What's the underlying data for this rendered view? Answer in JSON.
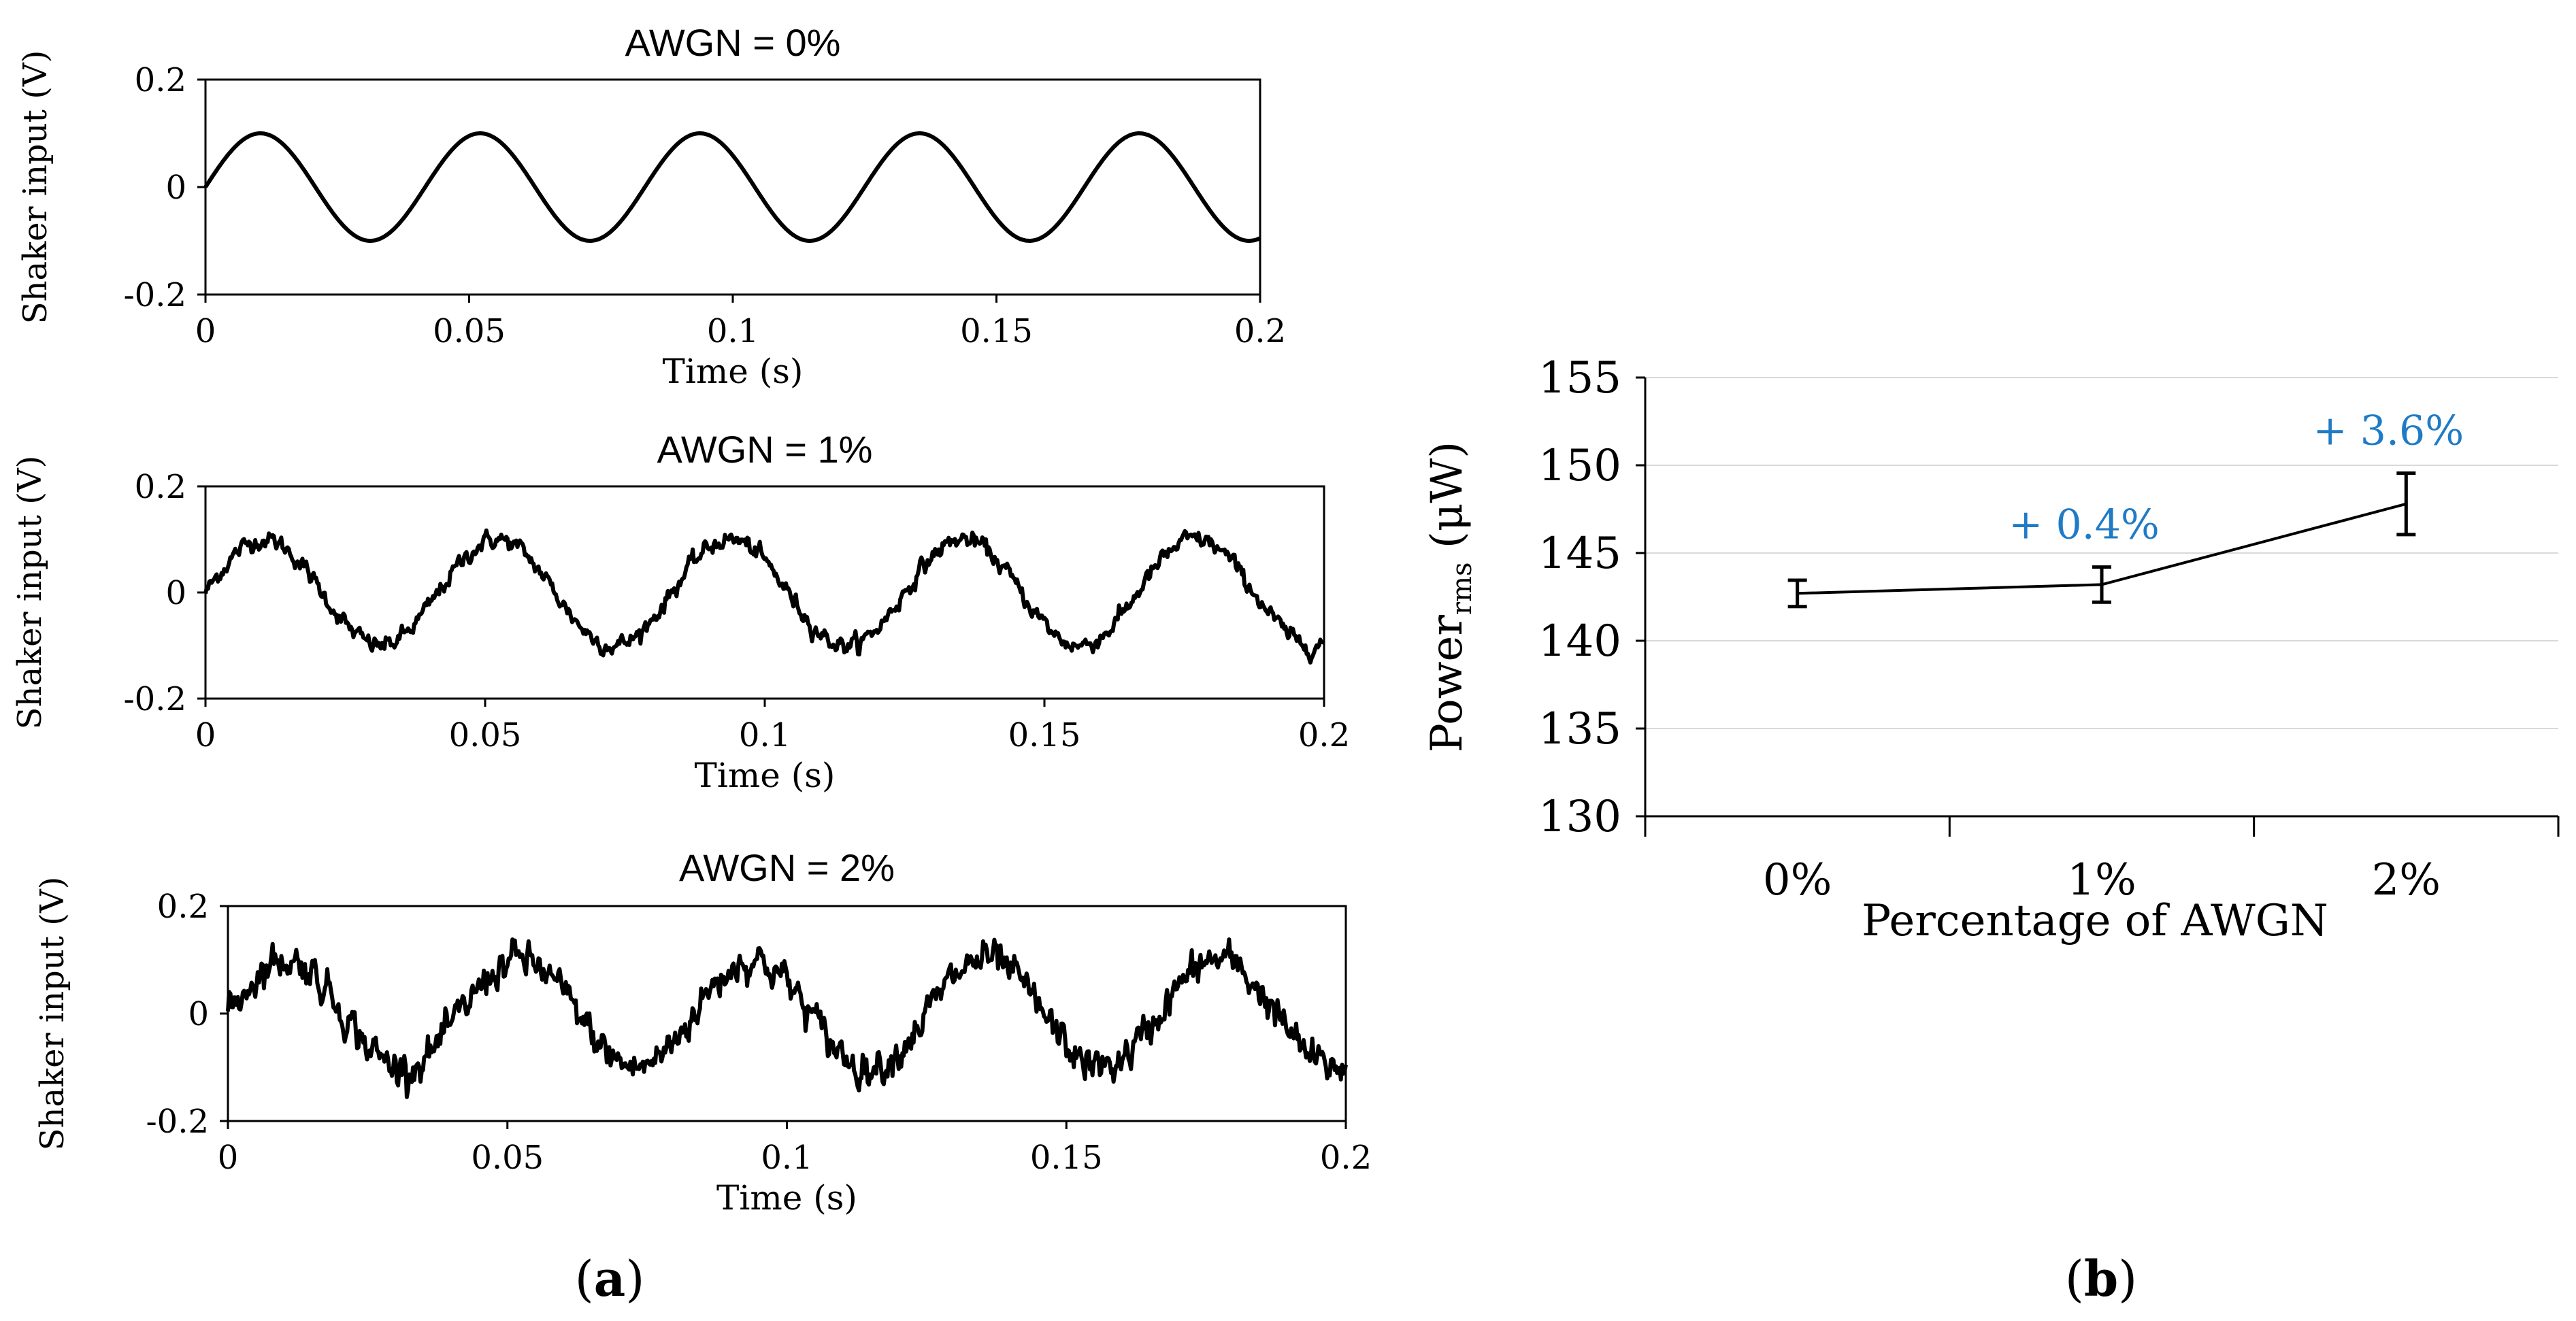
{
  "figure_labels": {
    "a": "a",
    "b": "b"
  },
  "chart_data": [
    {
      "id": "awgn0",
      "type": "line",
      "title": "AWGN = 0%",
      "xlabel": "Time (s)",
      "ylabel": "Shaker input (V)",
      "xlim": [
        0,
        0.2
      ],
      "ylim": [
        -0.2,
        0.2
      ],
      "xticks": [
        0,
        0.05,
        0.1,
        0.15,
        0.2
      ],
      "xtick_labels": [
        "0",
        "0.05",
        "0.1",
        "0.15",
        "0.2"
      ],
      "yticks": [
        -0.2,
        0,
        0.2
      ],
      "ytick_labels": [
        "-0.2",
        "0",
        "0.2"
      ],
      "signal": {
        "amplitude": 0.1,
        "frequency_hz": 24,
        "noise_percent": 0
      }
    },
    {
      "id": "awgn1",
      "type": "line",
      "title": "AWGN = 1%",
      "xlabel": "Time (s)",
      "ylabel": "Shaker input (V)",
      "xlim": [
        0,
        0.2
      ],
      "ylim": [
        -0.2,
        0.2
      ],
      "xticks": [
        0,
        0.05,
        0.1,
        0.15,
        0.2
      ],
      "xtick_labels": [
        "0",
        "0.05",
        "0.1",
        "0.15",
        "0.2"
      ],
      "yticks": [
        -0.2,
        0,
        0.2
      ],
      "ytick_labels": [
        "-0.2",
        "0",
        "0.2"
      ],
      "signal": {
        "amplitude": 0.1,
        "frequency_hz": 24,
        "noise_percent": 1
      }
    },
    {
      "id": "awgn2",
      "type": "line",
      "title": "AWGN = 2%",
      "xlabel": "Time (s)",
      "ylabel": "Shaker input (V)",
      "xlim": [
        0,
        0.2
      ],
      "ylim": [
        -0.2,
        0.2
      ],
      "xticks": [
        0,
        0.05,
        0.1,
        0.15,
        0.2
      ],
      "xtick_labels": [
        "0",
        "0.05",
        "0.1",
        "0.15",
        "0.2"
      ],
      "yticks": [
        -0.2,
        0,
        0.2
      ],
      "ytick_labels": [
        "-0.2",
        "0",
        "0.2"
      ],
      "signal": {
        "amplitude": 0.1,
        "frequency_hz": 24,
        "noise_percent": 2
      }
    },
    {
      "id": "power",
      "type": "line",
      "title": "",
      "xlabel": "Percentage of AWGN",
      "ylabel_main": "Power",
      "ylabel_sub": "rms",
      "ylabel_unit": " (μW)",
      "categories": [
        "0%",
        "1%",
        "2%"
      ],
      "values": [
        142.7,
        143.2,
        147.8
      ],
      "error": [
        0.75,
        1.0,
        1.75
      ],
      "annotations": [
        "",
        "+ 0.4%",
        "+ 3.6%"
      ],
      "annotation_color": "#1F7BC6",
      "ylim": [
        130,
        155
      ],
      "yticks": [
        130,
        135,
        140,
        145,
        150,
        155
      ],
      "grid": true
    }
  ]
}
